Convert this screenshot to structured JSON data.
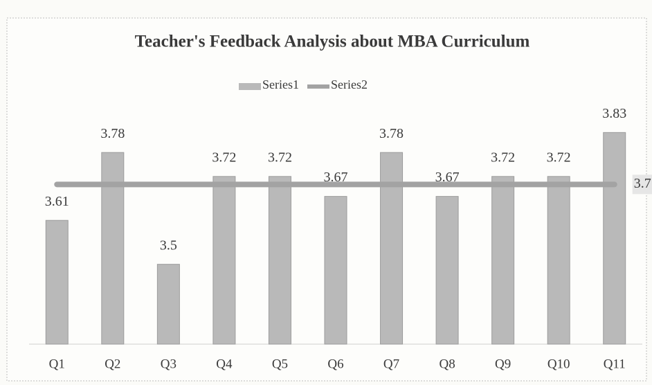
{
  "chart_data": {
    "type": "bar",
    "title": "Teacher's Feedback Analysis about MBA Curriculum",
    "categories": [
      "Q1",
      "Q2",
      "Q3",
      "Q4",
      "Q5",
      "Q6",
      "Q7",
      "Q8",
      "Q9",
      "Q10",
      "Q11"
    ],
    "series": [
      {
        "name": "Series1",
        "type": "bar",
        "color": "#b9b9b9",
        "values": [
          3.61,
          3.78,
          3.5,
          3.72,
          3.72,
          3.67,
          3.78,
          3.67,
          3.72,
          3.72,
          3.83
        ]
      },
      {
        "name": "Series2",
        "type": "line",
        "color": "#a3a3a3",
        "values": [
          3.7,
          3.7,
          3.7,
          3.7,
          3.7,
          3.7,
          3.7,
          3.7,
          3.7,
          3.7,
          3.7
        ]
      }
    ],
    "ylim": [
      3.3,
      3.9
    ],
    "legend": "top"
  }
}
